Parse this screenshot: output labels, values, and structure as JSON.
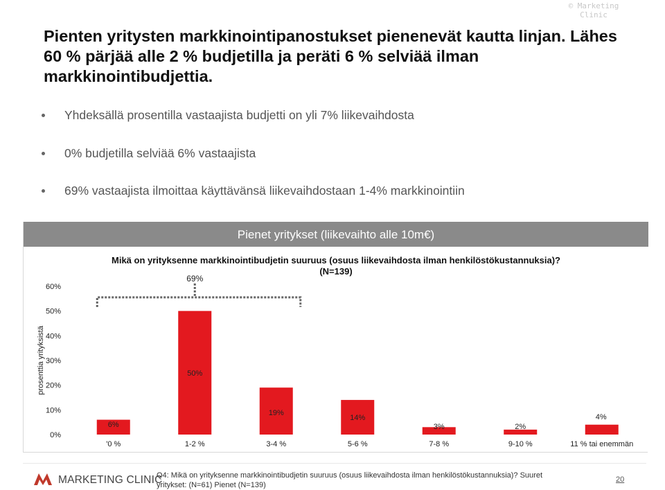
{
  "copyright": "© Marketing Clinic",
  "title": "Pienten yritysten markkinointipanostukset pienenevät kautta linjan. Lähes 60 % pärjää alle 2 % budjetilla ja peräti 6 % selviää ilman markkinointibudjettia.",
  "bullets": [
    "Yhdeksällä prosentilla vastaajista budjetti on yli 7% liikevaihdosta",
    "0% budjetilla selviää 6% vastaajista",
    "69% vastaajista ilmoittaa käyttävänsä liikevaihdostaan 1-4% markkinointiin"
  ],
  "chart_panel": {
    "header": "Pienet yritykset (liikevaihto alle 10m€)",
    "question_line1": "Mikä on yrityksenne markkinointibudjetin suuruus (osuus liikevaihdosta ilman henkilöstökustannuksia)?",
    "question_line2": "(N=139)"
  },
  "chart_data": {
    "type": "bar",
    "title": "",
    "xlabel": "",
    "ylabel": "prosenttia yrityksistä",
    "categories": [
      "'0 %",
      "1-2 %",
      "3-4 %",
      "5-6 %",
      "7-8 %",
      "9-10 %",
      "11 % tai enemmän"
    ],
    "values": [
      6,
      50,
      19,
      14,
      3,
      2,
      4
    ],
    "data_labels": [
      "6%",
      "50%",
      "19%",
      "14%",
      "3%",
      "2%",
      "4%"
    ],
    "ylim": [
      0,
      60
    ],
    "yticks": [
      "0%",
      "10%",
      "20%",
      "30%",
      "40%",
      "50%",
      "60%"
    ],
    "grid": false,
    "bar_color": "#e3191f",
    "annotation": {
      "text": "69%",
      "spans_categories": [
        "1-2 %",
        "3-4 %"
      ]
    }
  },
  "footer": {
    "brand": "MARKETING CLINIC",
    "footnote": "Q4: Mikä on yrityksenne markkinointibudjetin suuruus (osuus liikevaihdosta ilman henkilöstökustannuksia)? Suuret yritykset: (N=61) Pienet (N=139)",
    "page_number": "20",
    "logo_color": "#c0392b"
  }
}
